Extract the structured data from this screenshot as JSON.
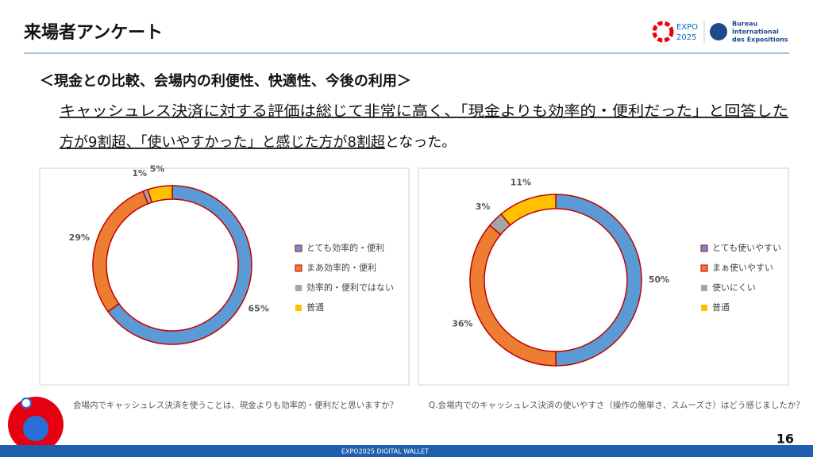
{
  "header": {
    "title": "来場者アンケート",
    "logo_expo": "EXPO",
    "logo_year": "2025",
    "logo_bie": [
      "Bureau",
      "International",
      "des Expositions"
    ]
  },
  "section_title": "＜現金との比較、会場内の利便性、快適性、今後の利用＞",
  "summary": {
    "line1": "キャッシュレス決済に対する評価は総じて非常に高く、「現金よりも効率的・便利だった」と回答した",
    "line2_underlined": "方が9割超、「使いやすかった」と感じた方が8割超",
    "line2_rest": "となった。"
  },
  "chart_data": [
    {
      "type": "donut",
      "categories": [
        "とても効率的・便利",
        "まあ効率的・便利",
        "効率的・便利ではない",
        "普通"
      ],
      "values": [
        65,
        29,
        1,
        5
      ],
      "value_labels": [
        "65%",
        "29%",
        "1%",
        "5%"
      ],
      "colors": [
        "#5b9bd5",
        "#ed7d31",
        "#a5a5a5",
        "#ffc000"
      ],
      "caption": "会場内でキャッシュレス決済を使うことは、現金よりも効率的・便利だと思いますか？"
    },
    {
      "type": "donut",
      "categories": [
        "とても使いやすい",
        "まぁ使いやすい",
        "使いにくい",
        "普通"
      ],
      "values": [
        50,
        36,
        3,
        11
      ],
      "value_labels": [
        "50%",
        "36%",
        "3%",
        "11%"
      ],
      "colors": [
        "#5b9bd5",
        "#ed7d31",
        "#a5a5a5",
        "#ffc000"
      ],
      "caption": "Q.会場内でのキャッシュレス決済の使いやすさ（操作の簡単さ、スムーズさ）はどう感じましたか？"
    }
  ],
  "footer": {
    "text": "EXPO2025 DIGITAL WALLET",
    "page": 16
  }
}
